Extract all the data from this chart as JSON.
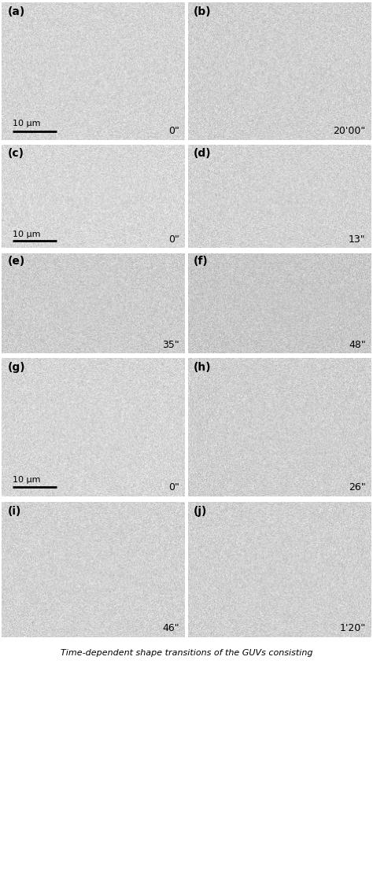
{
  "figure_width": 4.74,
  "figure_height": 11.3,
  "background_color": "#ffffff",
  "panel_bg_mean": 210,
  "panel_bg_std": 12,
  "separator_color": "#ffffff",
  "groups": [
    {
      "panels": [
        "(a)",
        "(b)"
      ],
      "times": [
        "0\"",
        "20'00\""
      ],
      "scale_bar": "10 μm",
      "scale_bar_panel": 0,
      "rows": 1,
      "cols": 2
    },
    {
      "panels": [
        "(c)",
        "(d)",
        "(e)",
        "(f)"
      ],
      "times": [
        "0\"",
        "13\"",
        "35\"",
        "48\""
      ],
      "scale_bar": "10 μm",
      "scale_bar_panel": 0,
      "rows": 2,
      "cols": 2
    },
    {
      "panels": [
        "(g)",
        "(h)",
        "(i)",
        "(j)"
      ],
      "times": [
        "0\"",
        "26\"",
        "46\"",
        "1'20\""
      ],
      "scale_bar": "10 μm",
      "scale_bar_panel": 0,
      "rows": 2,
      "cols": 2
    }
  ],
  "label_fontsize": 10,
  "time_fontsize": 9,
  "scale_fontsize": 8,
  "label_color": "#000000",
  "caption": "Time-dependent shape transitions of the GUVs consisting",
  "caption_fontsize": 8
}
